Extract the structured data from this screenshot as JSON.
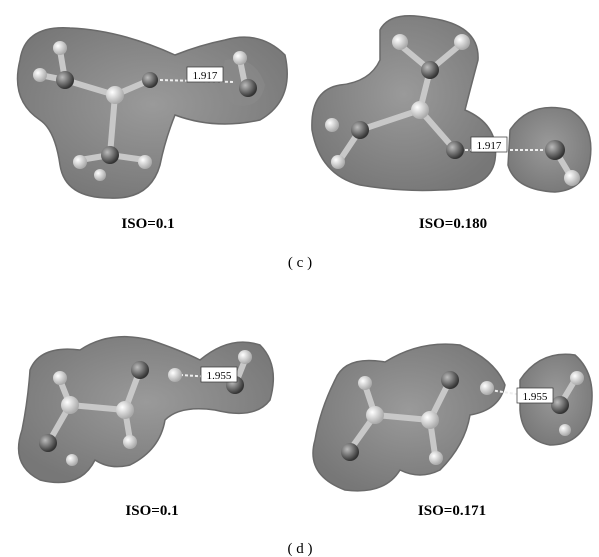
{
  "panels": [
    {
      "label": "( c )",
      "images": [
        {
          "bond_length": "1.917",
          "iso": "ISO=0.1"
        },
        {
          "bond_length": "1.917",
          "iso": "ISO=0.180"
        }
      ]
    },
    {
      "label": "( d )",
      "images": [
        {
          "bond_length": "1.955",
          "iso": "ISO=0.1"
        },
        {
          "bond_length": "1.955",
          "iso": "ISO=0.171"
        }
      ]
    }
  ]
}
